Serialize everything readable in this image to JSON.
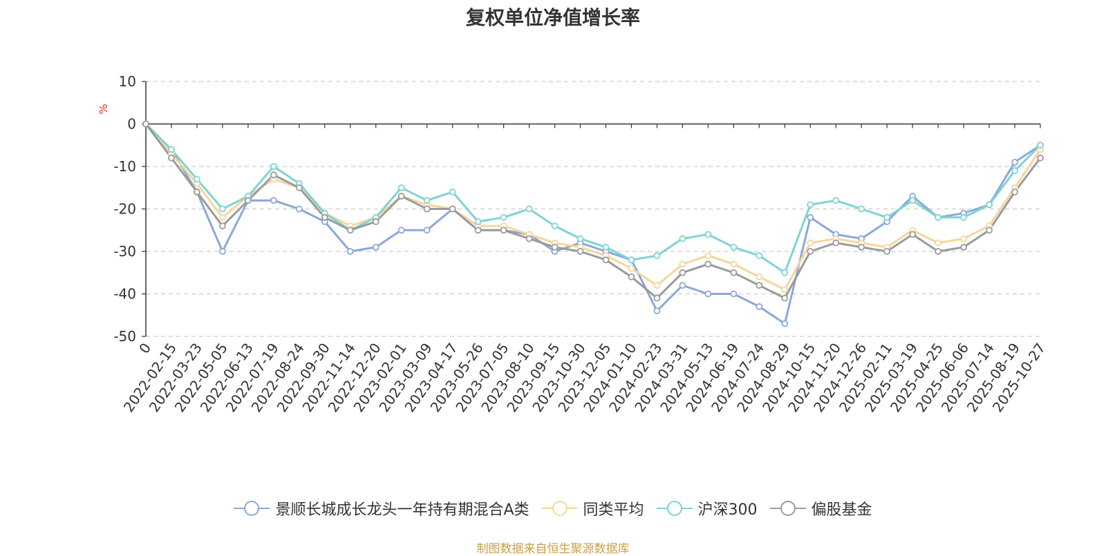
{
  "chart_data": {
    "type": "line",
    "title": "复权单位净值增长率",
    "ylabel": "%",
    "xlabel": "",
    "ylim": [
      -50,
      10
    ],
    "yticks": [
      10,
      0,
      -10,
      -20,
      -30,
      -40,
      -50
    ],
    "grid": true,
    "legend_position": "bottom",
    "x": [
      "0",
      "2022-02-15",
      "2022-03-23",
      "2022-05-05",
      "2022-06-13",
      "2022-07-19",
      "2022-08-24",
      "2022-09-30",
      "2022-11-14",
      "2022-12-20",
      "2023-02-01",
      "2023-03-09",
      "2023-04-17",
      "2023-05-26",
      "2023-07-05",
      "2023-08-10",
      "2023-09-15",
      "2023-10-30",
      "2023-12-05",
      "2024-01-10",
      "2024-02-23",
      "2024-03-31",
      "2024-05-13",
      "2024-06-19",
      "2024-07-24",
      "2024-08-29",
      "2024-10-15",
      "2024-11-20",
      "2024-12-26",
      "2025-02-11",
      "2025-03-19",
      "2025-04-25",
      "2025-06-06",
      "2025-07-14",
      "2025-08-19",
      "2025-10-27"
    ],
    "series": [
      {
        "name": "景顺长城成长龙头一年持有期混合A类",
        "color": "#8aa8d8",
        "values": [
          0,
          -6,
          -16,
          -30,
          -18,
          -18,
          -20,
          -23,
          -30,
          -29,
          -25,
          -25,
          -20,
          -25,
          -25,
          -26,
          -30,
          -28,
          -30,
          -32,
          -44,
          -38,
          -40,
          -40,
          -43,
          -47,
          -22,
          -26,
          -27,
          -23,
          -17,
          -22,
          -21,
          -19,
          -9,
          -5
        ]
      },
      {
        "name": "同类平均",
        "color": "#f7d59c",
        "values": [
          0,
          -7,
          -14,
          -22,
          -17,
          -13,
          -15,
          -21,
          -24,
          -22,
          -17,
          -19,
          -20,
          -24,
          -24,
          -26,
          -28,
          -29,
          -31,
          -34,
          -38,
          -33,
          -31,
          -33,
          -36,
          -39,
          -28,
          -27,
          -28,
          -29,
          -25,
          -28,
          -27,
          -24,
          -15,
          -6
        ]
      },
      {
        "name": "沪深300",
        "color": "#7fd3d3",
        "values": [
          0,
          -6,
          -13,
          -20,
          -17,
          -10,
          -14,
          -21,
          -25,
          -22,
          -15,
          -18,
          -16,
          -23,
          -22,
          -20,
          -24,
          -27,
          -29,
          -32,
          -31,
          -27,
          -26,
          -29,
          -31,
          -35,
          -19,
          -18,
          -20,
          -22,
          -18,
          -22,
          -22,
          -19,
          -11,
          -5
        ]
      },
      {
        "name": "偏股基金",
        "color": "#9a9a9a",
        "values": [
          0,
          -8,
          -16,
          -24,
          -18,
          -12,
          -15,
          -22,
          -25,
          -23,
          -17,
          -20,
          -20,
          -25,
          -25,
          -27,
          -29,
          -30,
          -32,
          -36,
          -41,
          -35,
          -33,
          -35,
          -38,
          -41,
          -30,
          -28,
          -29,
          -30,
          -26,
          -30,
          -29,
          -25,
          -16,
          -8
        ]
      }
    ]
  },
  "source_note": "制图数据来自恒生聚源数据库"
}
